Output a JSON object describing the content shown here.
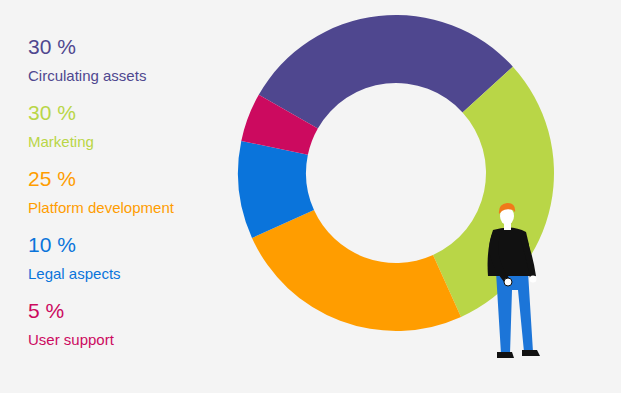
{
  "chart_data": {
    "type": "donut",
    "categories": [
      "Circulating assets",
      "Marketing",
      "Platform development",
      "Legal aspects",
      "User support"
    ],
    "values": [
      30,
      30,
      25,
      10,
      5
    ],
    "value_labels": [
      "30 %",
      "30 %",
      "25 %",
      "10 %",
      "5 %"
    ],
    "colors": [
      "#4f478f",
      "#b9d647",
      "#ff9d00",
      "#0a74db",
      "#cc0a5f"
    ],
    "legend": "left"
  }
}
